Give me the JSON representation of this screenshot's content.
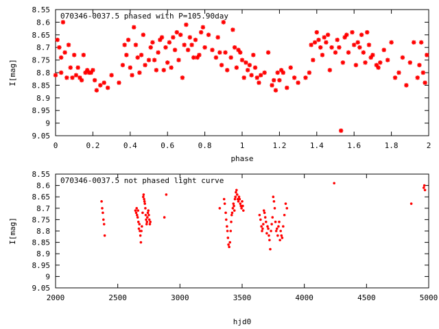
{
  "chart_data": [
    {
      "type": "scatter",
      "title": "070346-0037.5 phased with P=105.90day",
      "xlabel": "phase",
      "ylabel": "I[mag]",
      "xlim": [
        0,
        2
      ],
      "ylim": [
        9.05,
        8.55
      ],
      "y_inverted": true,
      "x_ticks": [
        "0",
        "0.2",
        "0.4",
        "0.6",
        "0.8",
        "1",
        "1.2",
        "1.4",
        "1.6",
        "1.8",
        "2"
      ],
      "y_ticks": [
        "8.55",
        "8.6",
        "8.65",
        "8.7",
        "8.75",
        "8.8",
        "8.85",
        "8.9",
        "8.95",
        "9",
        "9.05"
      ],
      "marker_color": "#ff0000",
      "marker": "asterisk",
      "grid": false,
      "series": [
        {
          "x": [
            0.0,
            0.01,
            0.02,
            0.03,
            0.03,
            0.04,
            0.05,
            0.06,
            0.07,
            0.08,
            0.09,
            0.1,
            0.11,
            0.12,
            0.13,
            0.14,
            0.15,
            0.16,
            0.17,
            0.18,
            0.19,
            0.2,
            0.21,
            0.22,
            0.24,
            0.26,
            0.28,
            0.3,
            0.34,
            0.36,
            0.37,
            0.38,
            0.39,
            0.4,
            0.41,
            0.42,
            0.43,
            0.44,
            0.45,
            0.46,
            0.47,
            0.48,
            0.5,
            0.51,
            0.52,
            0.53,
            0.54,
            0.55,
            0.56,
            0.57,
            0.58,
            0.59,
            0.6,
            0.61,
            0.62,
            0.63,
            0.64,
            0.65,
            0.66,
            0.67,
            0.68,
            0.69,
            0.7,
            0.71,
            0.72,
            0.73,
            0.74,
            0.75,
            0.76,
            0.77,
            0.78,
            0.79,
            0.8,
            0.82,
            0.84,
            0.86,
            0.87,
            0.88,
            0.89,
            0.9,
            0.91,
            0.92,
            0.94,
            0.95,
            0.96,
            0.97,
            0.98,
            0.99,
            1.0,
            1.01,
            1.02,
            1.03,
            1.04,
            1.05,
            1.06,
            1.07,
            1.08,
            1.09,
            1.1,
            1.12,
            1.14,
            1.16,
            1.17,
            1.18,
            1.19,
            1.2,
            1.21,
            1.22,
            1.24,
            1.26,
            1.28,
            1.3,
            1.34,
            1.36,
            1.37,
            1.38,
            1.39,
            1.4,
            1.41,
            1.42,
            1.43,
            1.44,
            1.45,
            1.46,
            1.47,
            1.48,
            1.5,
            1.51,
            1.52,
            1.53,
            1.54,
            1.55,
            1.56,
            1.57,
            1.59,
            1.6,
            1.61,
            1.62,
            1.63,
            1.64,
            1.65,
            1.66,
            1.67,
            1.68,
            1.69,
            1.7,
            1.72,
            1.73,
            1.74,
            1.76,
            1.78,
            1.8,
            1.82,
            1.84,
            1.86,
            1.88,
            1.9,
            1.92,
            1.94,
            1.95,
            1.96,
            1.97,
            1.98,
            1.99
          ],
          "y": [
            8.81,
            8.67,
            8.7,
            8.8,
            8.74,
            8.6,
            8.72,
            8.82,
            8.69,
            8.78,
            8.82,
            8.73,
            8.81,
            8.78,
            8.82,
            8.83,
            8.73,
            8.8,
            8.79,
            8.8,
            8.8,
            8.79,
            8.83,
            8.87,
            8.85,
            8.84,
            8.86,
            8.81,
            8.84,
            8.77,
            8.69,
            8.73,
            8.67,
            8.78,
            8.81,
            8.62,
            8.69,
            8.74,
            8.8,
            8.73,
            8.65,
            8.77,
            8.75,
            8.7,
            8.68,
            8.75,
            8.79,
            8.72,
            8.67,
            8.66,
            8.79,
            8.7,
            8.76,
            8.68,
            8.78,
            8.66,
            8.71,
            8.64,
            8.75,
            8.65,
            8.82,
            8.69,
            8.61,
            8.71,
            8.66,
            8.69,
            8.74,
            8.67,
            8.74,
            8.73,
            8.64,
            8.62,
            8.7,
            8.65,
            8.71,
            8.74,
            8.66,
            8.72,
            8.77,
            8.6,
            8.72,
            8.79,
            8.74,
            8.63,
            8.7,
            8.78,
            8.71,
            8.72,
            8.75,
            8.82,
            8.76,
            8.79,
            8.77,
            8.81,
            8.73,
            8.78,
            8.82,
            8.84,
            8.81,
            8.8,
            8.72,
            8.85,
            8.83,
            8.87,
            8.8,
            8.83,
            8.79,
            8.8,
            8.86,
            8.78,
            8.82,
            8.84,
            8.82,
            8.8,
            8.69,
            8.75,
            8.68,
            8.64,
            8.67,
            8.7,
            8.73,
            8.66,
            8.68,
            8.65,
            8.79,
            8.7,
            8.72,
            8.67,
            8.7,
            9.03,
            8.76,
            8.66,
            8.65,
            8.72,
            8.64,
            8.69,
            8.77,
            8.68,
            8.7,
            8.65,
            8.72,
            8.76,
            8.64,
            8.69,
            8.74,
            8.73,
            8.77,
            8.78,
            8.76,
            8.71,
            8.75,
            8.68,
            8.82,
            8.8,
            8.74,
            8.85,
            8.76,
            8.68,
            8.82,
            8.77,
            8.68,
            8.8,
            8.84,
            8.73
          ]
        }
      ]
    },
    {
      "type": "scatter",
      "title": "070346-0037.5 not phased light curve",
      "xlabel": "hjd0",
      "ylabel": "I[mag]",
      "xlim": [
        2000,
        5000
      ],
      "ylim": [
        9.05,
        8.55
      ],
      "y_inverted": true,
      "x_ticks": [
        "2000",
        "2500",
        "3000",
        "3500",
        "4000",
        "4500",
        "5000"
      ],
      "y_ticks": [
        "8.55",
        "8.6",
        "8.65",
        "8.7",
        "8.75",
        "8.8",
        "8.85",
        "8.9",
        "8.95",
        "9",
        "9.05"
      ],
      "marker_color": "#ff0000",
      "marker": "dot",
      "grid": false,
      "series": [
        {
          "x": [
            2370,
            2375,
            2380,
            2385,
            2390,
            2395,
            2642,
            2648,
            2652,
            2655,
            2660,
            2663,
            2666,
            2670,
            2674,
            2678,
            2682,
            2686,
            2690,
            2694,
            2700,
            2705,
            2708,
            2712,
            2715,
            2718,
            2722,
            2725,
            2728,
            2732,
            2735,
            2738,
            2742,
            2746,
            2750,
            2754,
            2758,
            2762,
            2875,
            2890,
            3320,
            3355,
            3360,
            3368,
            3372,
            3378,
            3382,
            3386,
            3390,
            3396,
            3402,
            3408,
            3412,
            3416,
            3420,
            3425,
            3430,
            3434,
            3438,
            3442,
            3446,
            3450,
            3455,
            3460,
            3465,
            3470,
            3475,
            3480,
            3485,
            3490,
            3495,
            3500,
            3505,
            3510,
            3640,
            3648,
            3655,
            3660,
            3665,
            3670,
            3675,
            3680,
            3686,
            3692,
            3698,
            3704,
            3710,
            3715,
            3720,
            3726,
            3732,
            3738,
            3744,
            3750,
            3756,
            3762,
            3768,
            3774,
            3780,
            3786,
            3792,
            3798,
            3804,
            3810,
            3816,
            3822,
            3830,
            3840,
            3850,
            3860,
            4240,
            4860,
            4960,
            4965,
            4970
          ],
          "y": [
            8.67,
            8.7,
            8.72,
            8.75,
            8.77,
            8.82,
            8.71,
            8.72,
            8.7,
            8.73,
            8.74,
            8.71,
            8.76,
            8.79,
            8.77,
            8.8,
            8.82,
            8.85,
            8.8,
            8.78,
            8.72,
            8.65,
            8.64,
            8.66,
            8.67,
            8.68,
            8.7,
            8.73,
            8.75,
            8.77,
            8.76,
            8.74,
            8.72,
            8.71,
            8.73,
            8.75,
            8.77,
            8.76,
            8.74,
            8.64,
            8.7,
            8.66,
            8.68,
            8.72,
            8.75,
            8.78,
            8.8,
            8.83,
            8.86,
            8.87,
            8.85,
            8.8,
            8.76,
            8.73,
            8.72,
            8.7,
            8.68,
            8.69,
            8.71,
            8.66,
            8.65,
            8.63,
            8.62,
            8.64,
            8.66,
            8.67,
            8.65,
            8.66,
            8.68,
            8.69,
            8.7,
            8.67,
            8.69,
            8.71,
            8.73,
            8.75,
            8.78,
            8.8,
            8.79,
            8.77,
            8.71,
            8.72,
            8.74,
            8.76,
            8.81,
            8.78,
            8.79,
            8.82,
            8.84,
            8.88,
            8.8,
            8.77,
            8.74,
            8.65,
            8.67,
            8.7,
            8.76,
            8.8,
            8.79,
            8.82,
            8.78,
            8.76,
            8.84,
            8.8,
            8.82,
            8.83,
            8.78,
            8.73,
            8.68,
            8.7,
            8.59,
            8.68,
            8.61,
            8.6,
            8.62
          ]
        }
      ]
    }
  ]
}
